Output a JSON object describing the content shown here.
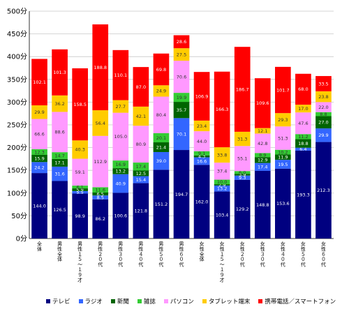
{
  "chart_data": {
    "type": "bar",
    "stacked": true,
    "categories": [
      "全体",
      "男性全体",
      "男性１５〜１９才",
      "男性２０代",
      "男性３０代",
      "男性４０代",
      "男性５０代",
      "男性６０代",
      "女性全体",
      "女性１５〜１９才",
      "女性２０代",
      "女性３０代",
      "女性４０代",
      "女性５０代",
      "女性６０代"
    ],
    "y_tick_labels": [
      "0分",
      "50分",
      "100分",
      "150分",
      "200分",
      "250分",
      "300分",
      "350分",
      "400分",
      "450分",
      "500分"
    ],
    "ylim": [
      0,
      500
    ],
    "legend_position": "bottom",
    "series": [
      {
        "name": "テレビ",
        "color": "#000080",
        "values": [
          144.0,
          126.5,
          98.9,
          86.2,
          100.6,
          121.8,
          151.2,
          194.7,
          162.0,
          103.4,
          129.2,
          148.8,
          153.6,
          193.3,
          212.3
        ]
      },
      {
        "name": "ラジオ",
        "color": "#3366ff",
        "values": [
          24.2,
          31.6,
          5.5,
          8.5,
          40.9,
          15.4,
          39.0,
          70.1,
          16.6,
          13.2,
          9.3,
          17.4,
          19.5,
          6.4,
          29.9
        ]
      },
      {
        "name": "新聞",
        "color": "#006400",
        "values": [
          15.9,
          17.1,
          5.9,
          6.5,
          13.2,
          12.5,
          21.4,
          35.7,
          4.3,
          2.9,
          3.9,
          12.9,
          11.9,
          18.8,
          27.0
        ]
      },
      {
        "name": "雑誌",
        "color": "#33cc33",
        "values": [
          12.3,
          14.7,
          6.1,
          11.6,
          16.9,
          17.4,
          20.1,
          19.9,
          9.1,
          10.0,
          6.0,
          8.9,
          10.2,
          11.2,
          8.8
        ]
      },
      {
        "name": "パソコン",
        "color": "#ff99ff",
        "values": [
          66.6,
          88.6,
          59.1,
          112.9,
          105.0,
          80.9,
          80.4,
          70.6,
          44.0,
          37.4,
          55.1,
          42.8,
          51.3,
          47.6,
          22.0
        ]
      },
      {
        "name": "タブレット端末",
        "color": "#ffcc00",
        "values": [
          29.9,
          36.2,
          40.3,
          56.4,
          27.7,
          42.1,
          24.9,
          27.5,
          23.4,
          33.8,
          31.3,
          12.1,
          29.3,
          17.0,
          23.8
        ]
      },
      {
        "name": "携帯電話／スマートフォン",
        "color": "#ff0000",
        "values": [
          102.1,
          101.3,
          158.5,
          188.8,
          110.1,
          87.0,
          69.8,
          28.6,
          106.9,
          166.3,
          186.7,
          109.6,
          101.7,
          68.0,
          33.5
        ]
      }
    ]
  }
}
